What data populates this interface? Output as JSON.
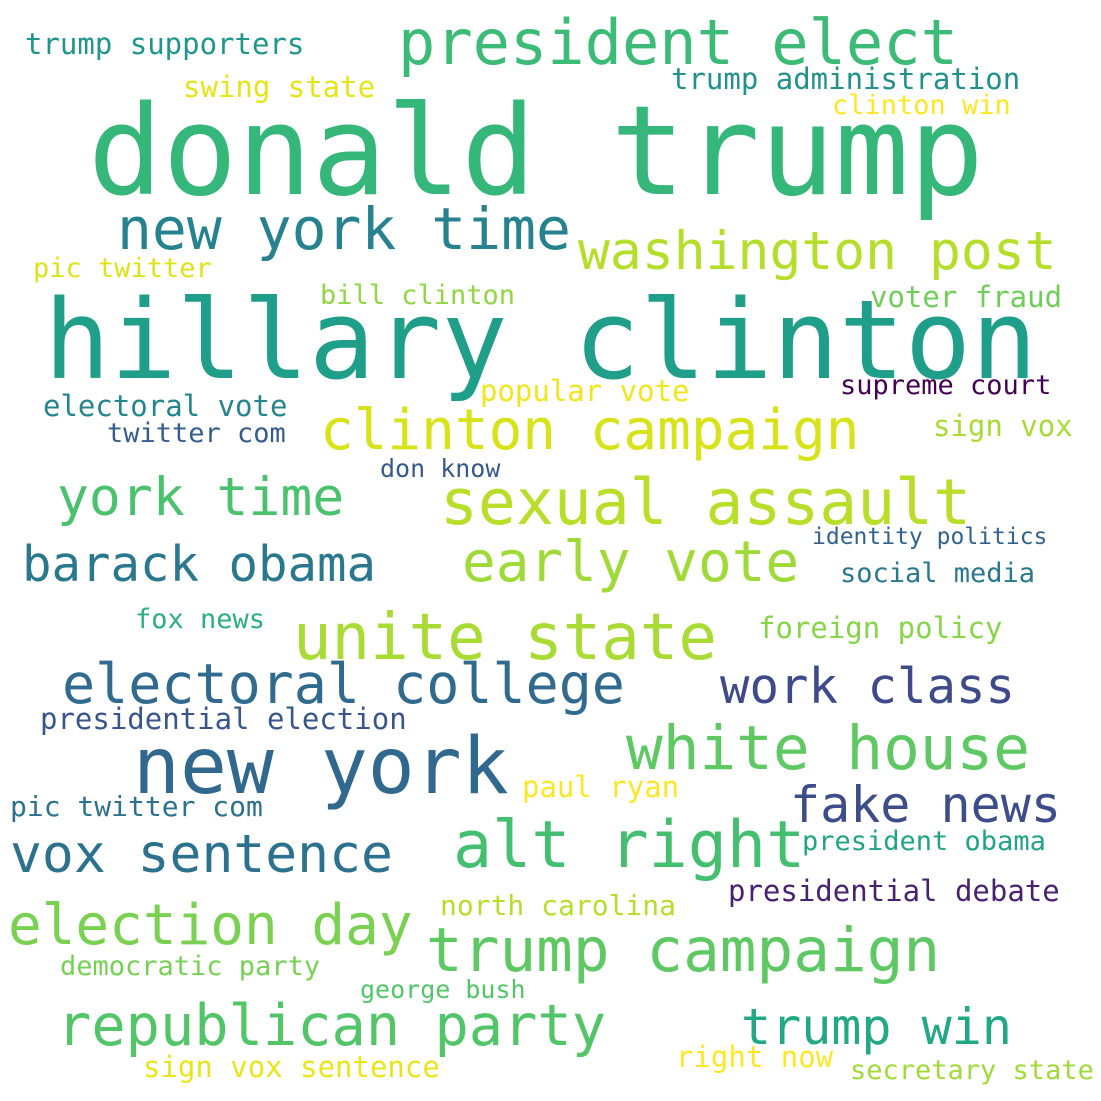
{
  "words": [
    {
      "text": "donald trump",
      "color": "#35b779"
    },
    {
      "text": "hillary clinton",
      "color": "#1f9e89"
    },
    {
      "text": "president elect",
      "color": "#3bbb75"
    },
    {
      "text": "new york time",
      "color": "#26828e"
    },
    {
      "text": "washington post",
      "color": "#b5de2b"
    },
    {
      "text": "clinton campaign",
      "color": "#d8e219"
    },
    {
      "text": "sexual assault",
      "color": "#b8de29"
    },
    {
      "text": "york time",
      "color": "#4ac16d"
    },
    {
      "text": "barack obama",
      "color": "#2a788e"
    },
    {
      "text": "early vote",
      "color": "#a0da39"
    },
    {
      "text": "unite state",
      "color": "#a8db34"
    },
    {
      "text": "electoral college",
      "color": "#306a8e"
    },
    {
      "text": "work class",
      "color": "#3e4a89"
    },
    {
      "text": "new york",
      "color": "#31688e"
    },
    {
      "text": "white house",
      "color": "#5ec962"
    },
    {
      "text": "fake news",
      "color": "#3d4d8a"
    },
    {
      "text": "vox sentence",
      "color": "#2c728e"
    },
    {
      "text": "alt right",
      "color": "#44bf70"
    },
    {
      "text": "election day",
      "color": "#7ad151"
    },
    {
      "text": "trump campaign",
      "color": "#5ec962"
    },
    {
      "text": "republican party",
      "color": "#52c569"
    },
    {
      "text": "trump win",
      "color": "#22a884"
    },
    {
      "text": "trump supporters",
      "color": "#1f968b"
    },
    {
      "text": "swing state",
      "color": "#e5e419"
    },
    {
      "text": "trump administration",
      "color": "#21918c"
    },
    {
      "text": "clinton win",
      "color": "#fde725"
    },
    {
      "text": "pic twitter",
      "color": "#dde318"
    },
    {
      "text": "bill clinton",
      "color": "#8fd744"
    },
    {
      "text": "voter fraud",
      "color": "#6ece58"
    },
    {
      "text": "popular vote",
      "color": "#f1e51d"
    },
    {
      "text": "supreme court",
      "color": "#440154"
    },
    {
      "text": "electoral vote",
      "color": "#25858e"
    },
    {
      "text": "twitter com",
      "color": "#365c8d"
    },
    {
      "text": "sign vox",
      "color": "#a8db34"
    },
    {
      "text": "don know",
      "color": "#38598c"
    },
    {
      "text": "identity politics",
      "color": "#33638d"
    },
    {
      "text": "social media",
      "color": "#2a788e"
    },
    {
      "text": "fox news",
      "color": "#2ab07f"
    },
    {
      "text": "foreign policy",
      "color": "#86d549"
    },
    {
      "text": "presidential election",
      "color": "#39568c"
    },
    {
      "text": "paul ryan",
      "color": "#fde725"
    },
    {
      "text": "pic twitter com",
      "color": "#2c728e"
    },
    {
      "text": "president obama",
      "color": "#20a386"
    },
    {
      "text": "presidential debate",
      "color": "#482173"
    },
    {
      "text": "north carolina",
      "color": "#b5de2b"
    },
    {
      "text": "democratic party",
      "color": "#75d054"
    },
    {
      "text": "george bush",
      "color": "#52c569"
    },
    {
      "text": "right now",
      "color": "#fde725"
    },
    {
      "text": "sign vox sentence",
      "color": "#eae51a"
    },
    {
      "text": "secretary state",
      "color": "#a0da39"
    }
  ]
}
